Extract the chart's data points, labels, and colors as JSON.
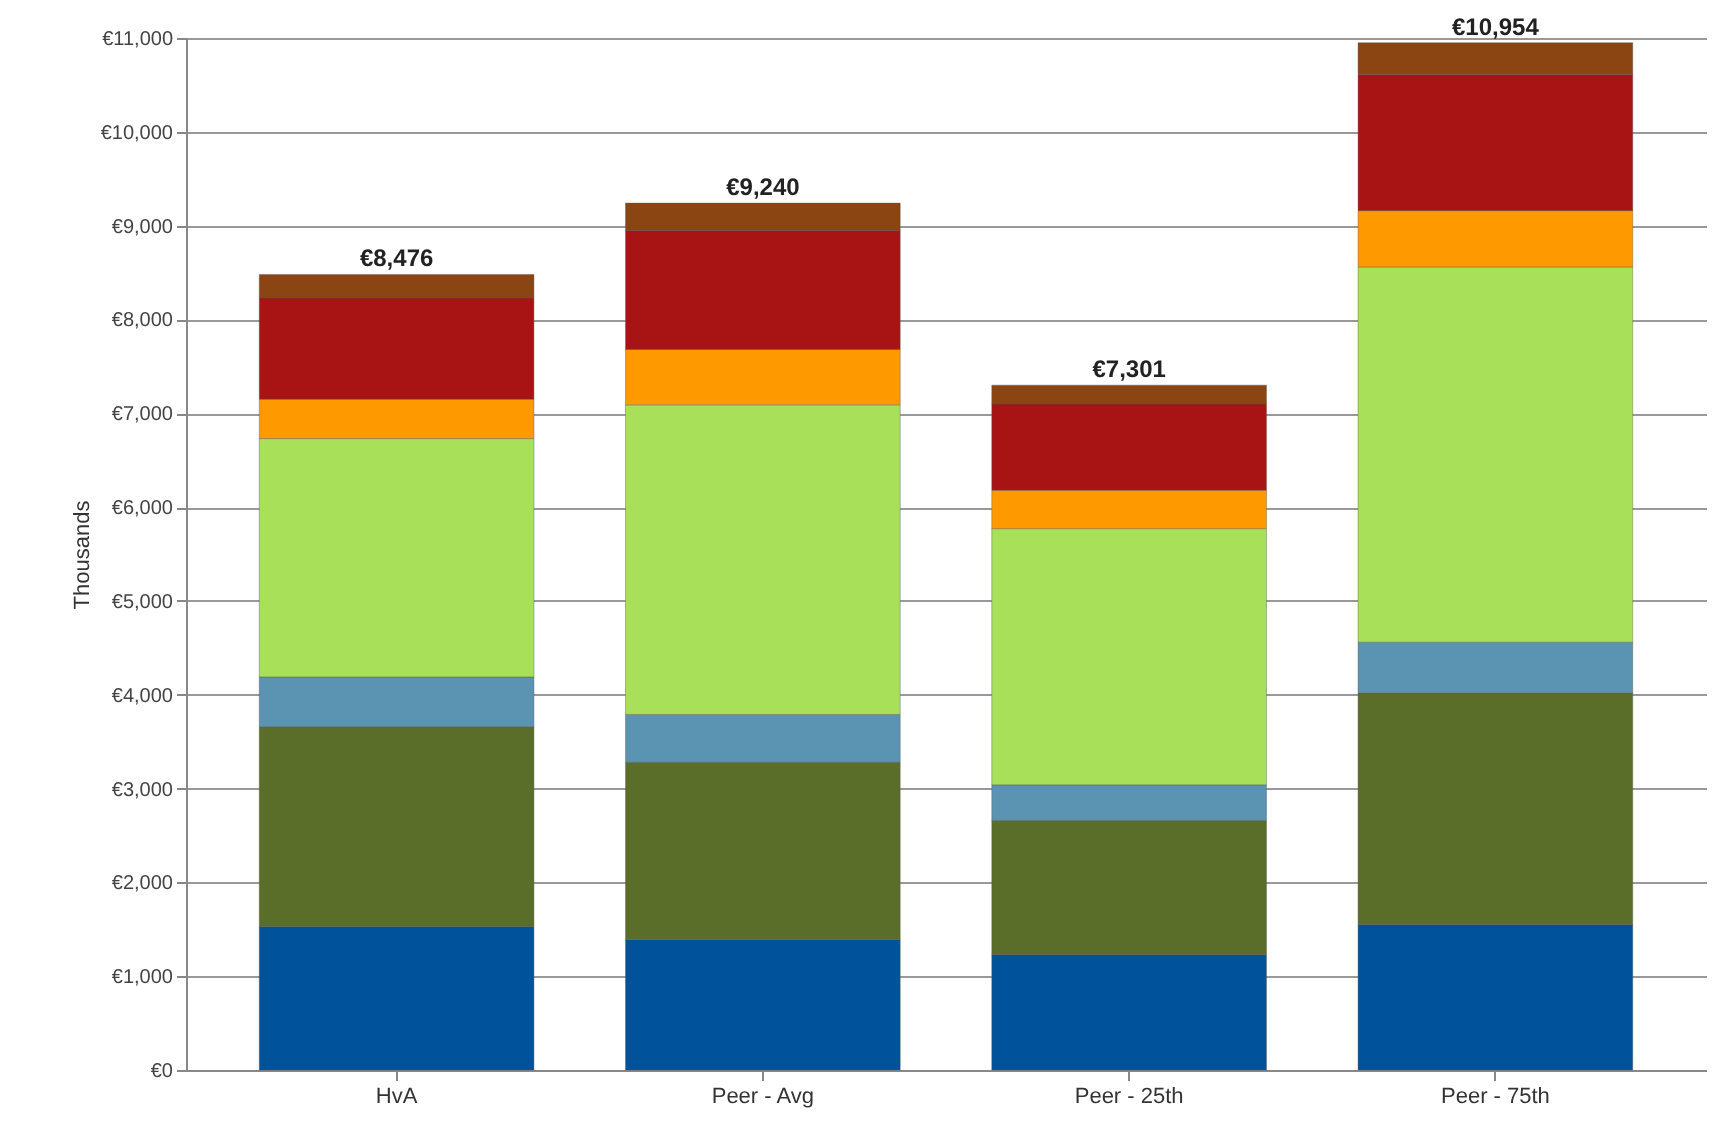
{
  "chart_data": {
    "type": "bar",
    "stacked": true,
    "ylabel": "Thousands",
    "categories": [
      "HvA",
      "Peer - Avg",
      "Peer - 25th",
      "Peer - 75th"
    ],
    "series": [
      {
        "color": "#00529b",
        "values": [
          1530,
          1390,
          1230,
          1550
        ]
      },
      {
        "color": "#5a6e2a",
        "values": [
          2130,
          1890,
          1430,
          2470
        ]
      },
      {
        "color": "#5b93b3",
        "values": [
          530,
          510,
          380,
          540
        ]
      },
      {
        "color": "#a8e05a",
        "values": [
          2540,
          3300,
          2730,
          4000
        ]
      },
      {
        "color": "#ff9900",
        "values": [
          420,
          590,
          410,
          600
        ]
      },
      {
        "color": "#a81414",
        "values": [
          1080,
          1270,
          920,
          1450
        ]
      },
      {
        "color": "#8b4513",
        "values": [
          250,
          290,
          200,
          340
        ]
      }
    ],
    "totals": [
      "€8,476",
      "€9,240",
      "€7,301",
      "€10,954"
    ],
    "ylim": [
      0,
      11000
    ],
    "yticks": [
      {
        "value": 0,
        "label": "€0"
      },
      {
        "value": 1000,
        "label": "€1,000"
      },
      {
        "value": 2000,
        "label": "€2,000"
      },
      {
        "value": 3000,
        "label": "€3,000"
      },
      {
        "value": 4000,
        "label": "€4,000"
      },
      {
        "value": 5000,
        "label": "€5,000"
      },
      {
        "value": 6000,
        "label": "€6,000"
      },
      {
        "value": 7000,
        "label": "€7,000"
      },
      {
        "value": 8000,
        "label": "€8,000"
      },
      {
        "value": 9000,
        "label": "€9,000"
      },
      {
        "value": 10000,
        "label": "€10,000"
      },
      {
        "value": 11000,
        "label": "€11,000"
      }
    ],
    "grid": "y"
  }
}
